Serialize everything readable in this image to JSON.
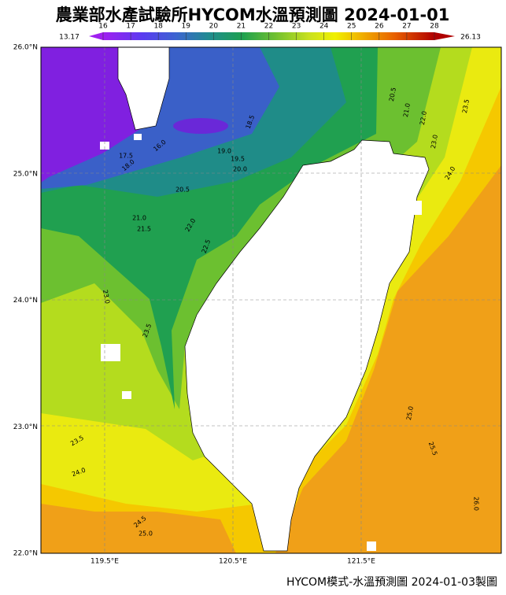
{
  "title": "農業部水產試驗所HYCOM水溫預測圖 2024-01-01",
  "colorbar": {
    "min_label": 13.17,
    "max_label": 26.13,
    "ticks": [
      16,
      17,
      18,
      19,
      20,
      21,
      22,
      23,
      24,
      25,
      26,
      27,
      28
    ]
  },
  "lat_labels": [
    "26.0°N",
    "25.0°N",
    "24.0°N",
    "23.0°N",
    "22.0°N"
  ],
  "lon_labels": [
    "119.5°E",
    "120.5°E",
    "121.5°E"
  ],
  "contour_labels": [
    "20.5",
    "21.0",
    "23.5",
    "23.0",
    "24.0",
    "22.0",
    "18.5",
    "16.0",
    "17.5",
    "18.0",
    "19.0",
    "19.5",
    "20.0",
    "20.5",
    "21.0",
    "21.5",
    "22.0",
    "22.5",
    "23.0",
    "23.5",
    "23.5",
    "24.0",
    "24.5",
    "25.0",
    "25.0",
    "25.5",
    "26.0"
  ],
  "footer": "HYCOM模式-水溫預測圖 2024-01-03製圖"
}
